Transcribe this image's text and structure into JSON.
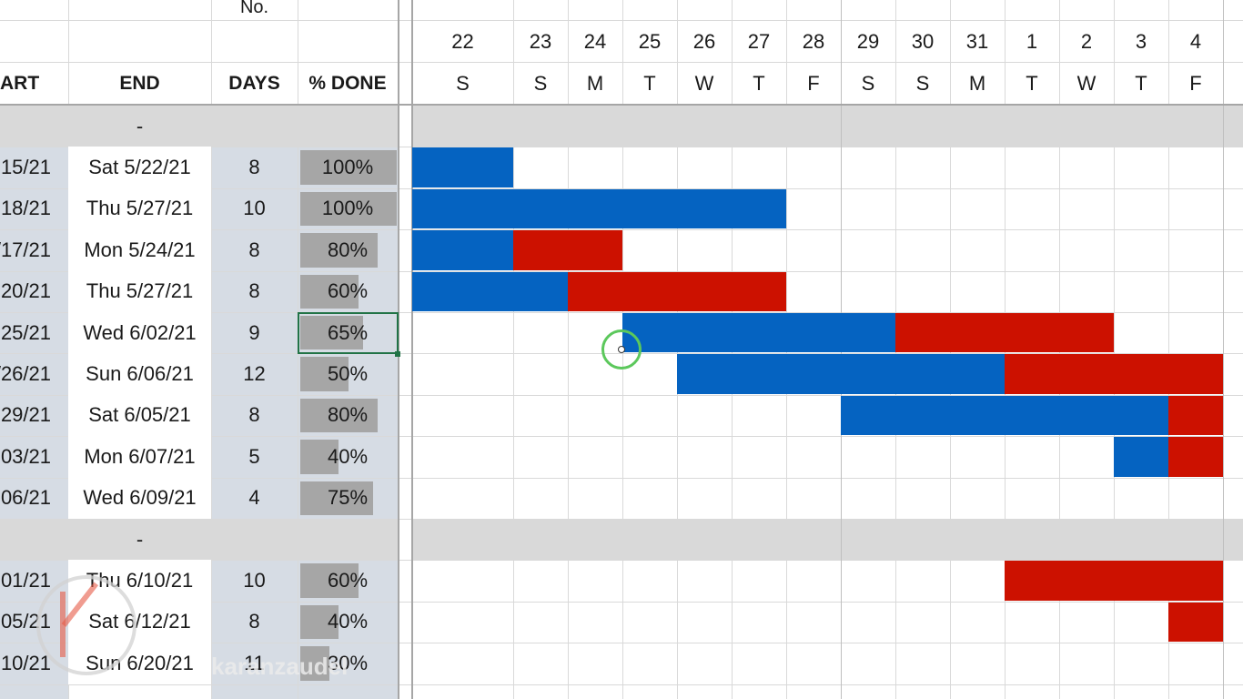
{
  "header": {
    "no_label": "No.",
    "start_label": "ART",
    "end_label": "END",
    "days_label": "DAYS",
    "done_label": "% DONE"
  },
  "timeline": {
    "dates": [
      "22",
      "23",
      "24",
      "25",
      "26",
      "27",
      "28",
      "29",
      "30",
      "31",
      "1",
      "2",
      "3",
      "4"
    ],
    "weekdays": [
      "S",
      "S",
      "M",
      "T",
      "W",
      "T",
      "F",
      "S",
      "S",
      "M",
      "T",
      "W",
      "T",
      "F"
    ]
  },
  "group_separator": "-",
  "tasks": [
    {
      "start": "15/21",
      "end": "Sat 5/22/21",
      "days": "8",
      "done": "100%",
      "done_fraction": 1.0,
      "bars": [
        {
          "type": "blue",
          "from": 0,
          "to": 1
        }
      ]
    },
    {
      "start": "18/21",
      "end": "Thu 5/27/21",
      "days": "10",
      "done": "100%",
      "done_fraction": 1.0,
      "bars": [
        {
          "type": "blue",
          "from": 0,
          "to": 6
        }
      ]
    },
    {
      "start": "/17/21",
      "end": "Mon 5/24/21",
      "days": "8",
      "done": "80%",
      "done_fraction": 0.8,
      "bars": [
        {
          "type": "blue",
          "from": 0,
          "to": 1
        },
        {
          "type": "red",
          "from": 1,
          "to": 3
        }
      ]
    },
    {
      "start": "20/21",
      "end": "Thu 5/27/21",
      "days": "8",
      "done": "60%",
      "done_fraction": 0.6,
      "bars": [
        {
          "type": "blue",
          "from": 0,
          "to": 2
        },
        {
          "type": "red",
          "from": 2,
          "to": 6
        }
      ]
    },
    {
      "start": "25/21",
      "end": "Wed 6/02/21",
      "days": "9",
      "done": "65%",
      "done_fraction": 0.65,
      "bars": [
        {
          "type": "blue",
          "from": 3,
          "to": 8
        },
        {
          "type": "red",
          "from": 8,
          "to": 12
        }
      ]
    },
    {
      "start": "/26/21",
      "end": "Sun 6/06/21",
      "days": "12",
      "done": "50%",
      "done_fraction": 0.5,
      "bars": [
        {
          "type": "blue",
          "from": 4,
          "to": 10
        },
        {
          "type": "red",
          "from": 10,
          "to": 14
        }
      ]
    },
    {
      "start": "29/21",
      "end": "Sat 6/05/21",
      "days": "8",
      "done": "80%",
      "done_fraction": 0.8,
      "bars": [
        {
          "type": "blue",
          "from": 7,
          "to": 13
        },
        {
          "type": "red",
          "from": 13,
          "to": 14
        }
      ]
    },
    {
      "start": "03/21",
      "end": "Mon 6/07/21",
      "days": "5",
      "done": "40%",
      "done_fraction": 0.4,
      "bars": [
        {
          "type": "blue",
          "from": 12,
          "to": 13
        },
        {
          "type": "red",
          "from": 13,
          "to": 14
        }
      ]
    },
    {
      "start": "06/21",
      "end": "Wed 6/09/21",
      "days": "4",
      "done": "75%",
      "done_fraction": 0.75,
      "bars": []
    }
  ],
  "tasks2": [
    {
      "start": "01/21",
      "end": "Thu 6/10/21",
      "days": "10",
      "done": "60%",
      "done_fraction": 0.6,
      "bars": [
        {
          "type": "red",
          "from": 10,
          "to": 14
        }
      ]
    },
    {
      "start": "05/21",
      "end": "Sat 6/12/21",
      "days": "8",
      "done": "40%",
      "done_fraction": 0.4,
      "bars": [
        {
          "type": "red",
          "from": 13,
          "to": 14
        }
      ]
    },
    {
      "start": "10/21",
      "end": "Sun 6/20/21",
      "days": "11",
      "done": "30%",
      "done_fraction": 0.3,
      "bars": []
    }
  ],
  "watermark": "karanzaudel",
  "colors": {
    "done_bar": "#0563c1",
    "remaining_bar": "#cc1100",
    "band": "#d9d9d9",
    "column_fill": "#d6dce4",
    "percent_fill": "#a6a6a6"
  }
}
